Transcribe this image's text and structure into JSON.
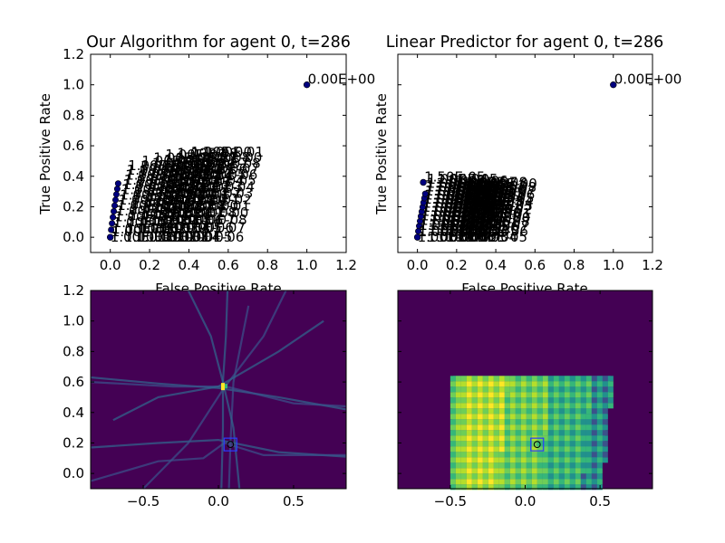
{
  "chart_data": [
    {
      "type": "scatter",
      "title": "Our Algorithm for agent 0, t=286",
      "xlabel": "False Positive Rate",
      "ylabel": "True Positive Rate",
      "xlim": [
        -0.1,
        1.2
      ],
      "ylim": [
        -0.1,
        1.2
      ],
      "xticks": [
        "0.0",
        "0.2",
        "0.4",
        "0.6",
        "0.8",
        "1.0",
        "1.2"
      ],
      "yticks": [
        "0.0",
        "0.2",
        "0.4",
        "0.6",
        "0.8",
        "1.0",
        "1.2"
      ],
      "marker_color": "#00007f",
      "annotated_points": [
        {
          "x": 1.0,
          "y": 1.0,
          "label": "0.00E+00"
        },
        {
          "x": 0.0,
          "y": 0.0,
          "label": "1.00E+00"
        }
      ],
      "curve_families": [
        {
          "x_offset": 0.0,
          "x_span": 0.09,
          "y_top": 0.47
        },
        {
          "x_offset": 0.07,
          "x_span": 0.09,
          "y_top": 0.5
        },
        {
          "x_offset": 0.13,
          "x_span": 0.09,
          "y_top": 0.52
        },
        {
          "x_offset": 0.19,
          "x_span": 0.09,
          "y_top": 0.54
        },
        {
          "x_offset": 0.25,
          "x_span": 0.09,
          "y_top": 0.55
        },
        {
          "x_offset": 0.31,
          "x_span": 0.1,
          "y_top": 0.56
        },
        {
          "x_offset": 0.37,
          "x_span": 0.1,
          "y_top": 0.56
        }
      ]
    },
    {
      "type": "scatter",
      "title": "Linear Predictor for agent 0, t=286",
      "xlabel": "False Positive Rate",
      "ylabel": "True Positive Rate",
      "xlim": [
        -0.1,
        1.2
      ],
      "ylim": [
        -0.1,
        1.2
      ],
      "xticks": [
        "0.0",
        "0.2",
        "0.4",
        "0.6",
        "0.8",
        "1.0",
        "1.2"
      ],
      "yticks": [],
      "marker_color": "#00007f",
      "annotated_points": [
        {
          "x": 1.0,
          "y": 1.0,
          "label": "0.00E+00"
        },
        {
          "x": 0.0,
          "y": 0.0,
          "label": "1.00E+00"
        },
        {
          "x": 0.03,
          "y": 0.36,
          "label": "1.50E-05"
        }
      ],
      "curve_families": [
        {
          "x_offset": 0.0,
          "x_span": 0.05,
          "y_top": 0.38
        },
        {
          "x_offset": 0.05,
          "x_span": 0.05,
          "y_top": 0.38
        },
        {
          "x_offset": 0.1,
          "x_span": 0.05,
          "y_top": 0.37
        },
        {
          "x_offset": 0.15,
          "x_span": 0.05,
          "y_top": 0.36
        },
        {
          "x_offset": 0.2,
          "x_span": 0.05,
          "y_top": 0.36
        },
        {
          "x_offset": 0.25,
          "x_span": 0.05,
          "y_top": 0.35
        }
      ]
    },
    {
      "type": "heatmap",
      "title": "",
      "xlim": [
        -0.85,
        0.85
      ],
      "ylim": [
        -0.1,
        1.2
      ],
      "xticks": [
        -0.5,
        0.0,
        0.5
      ],
      "xtick_labels": [
        "−0.5",
        "0.0",
        "0.5"
      ],
      "yticks": [
        "0.0",
        "0.2",
        "0.4",
        "0.6",
        "0.8",
        "1.0",
        "1.2"
      ],
      "background_color": "#440154",
      "marker": {
        "x": 0.08,
        "y": 0.19
      },
      "hotspot": {
        "x": 0.03,
        "y": 0.57
      }
    },
    {
      "type": "heatmap",
      "title": "",
      "xlim": [
        -0.85,
        0.85
      ],
      "ylim": [
        -0.1,
        1.2
      ],
      "xticks": [
        -0.5,
        0.0,
        0.5
      ],
      "xtick_labels": [
        "−0.5",
        "0.0",
        "0.5"
      ],
      "yticks": [],
      "background_color": "#440154",
      "marker": {
        "x": 0.08,
        "y": 0.19
      },
      "region": {
        "x_left": -0.5,
        "x_right_bottom": 0.5,
        "x_right_top": 0.57,
        "y_bottom": -0.1,
        "y_top": 0.64
      }
    }
  ]
}
